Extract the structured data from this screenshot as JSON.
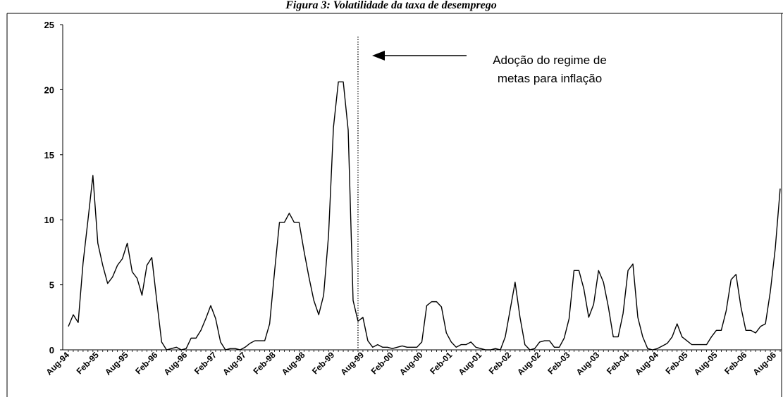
{
  "chart_data": {
    "type": "line",
    "title": "Figura 3: Volatilidade da taxa de desemprego",
    "xlabel": "",
    "ylabel": "",
    "ylim": [
      0,
      25
    ],
    "yticks": [
      0,
      5,
      10,
      15,
      20,
      25
    ],
    "grid": false,
    "legend": "none",
    "line_color": "#000000",
    "x_tick_labels": [
      "Aug-94",
      "Feb-95",
      "Aug-95",
      "Feb-96",
      "Aug-96",
      "Feb-97",
      "Aug-97",
      "Feb-98",
      "Aug-98",
      "Feb-99",
      "Aug-99",
      "Feb-00",
      "Aug-00",
      "Feb-01",
      "Aug-01",
      "Feb-02",
      "Aug-02",
      "Feb-03",
      "Aug-03",
      "Feb-04",
      "Aug-04",
      "Feb-05",
      "Aug-05",
      "Feb-06",
      "Aug-06"
    ],
    "x_start": "Aug-94",
    "series": [
      {
        "values": [
          1.8,
          2.7,
          2.1,
          6.7,
          10.0,
          13.4,
          8.2,
          6.5,
          5.1,
          5.6,
          6.5,
          7.0,
          8.2,
          6.0,
          5.5,
          4.2,
          6.5,
          7.1,
          3.8,
          0.6,
          0.0,
          0.1,
          0.2,
          0.0,
          0.1,
          0.9,
          0.9,
          1.5,
          2.4,
          3.4,
          2.4,
          0.6,
          0.0,
          0.1,
          0.1,
          0.0,
          0.2,
          0.5,
          0.7,
          0.7,
          0.7,
          2.0,
          6.0,
          9.8,
          9.8,
          10.5,
          9.8,
          9.8,
          7.6,
          5.6,
          3.8,
          2.7,
          4.2,
          8.8,
          17.1,
          20.6,
          20.6,
          16.9,
          3.8,
          2.2,
          2.5,
          0.7,
          0.2,
          0.4,
          0.2,
          0.2,
          0.1,
          0.2,
          0.3,
          0.2,
          0.2,
          0.2,
          0.6,
          3.4,
          3.7,
          3.7,
          3.3,
          1.3,
          0.6,
          0.2,
          0.4,
          0.4,
          0.6,
          0.2,
          0.1,
          0.0,
          0.0,
          0.1,
          0.0,
          1.0,
          3.1,
          5.2,
          2.5,
          0.4,
          0.0,
          0.1,
          0.6,
          0.7,
          0.7,
          0.2,
          0.2,
          0.9,
          2.4,
          6.1,
          6.1,
          4.7,
          2.5,
          3.5,
          6.1,
          5.2,
          3.3,
          1.0,
          1.0,
          2.8,
          6.1,
          6.6,
          2.5,
          1.0,
          0.1,
          0.0,
          0.1,
          0.3,
          0.5,
          1.0,
          2.0,
          1.0,
          0.7,
          0.4,
          0.4,
          0.4,
          0.4,
          1.0,
          1.5,
          1.5,
          3.0,
          5.4,
          5.8,
          3.3,
          1.5,
          1.5,
          1.3,
          1.8,
          2.0,
          4.5,
          7.8,
          12.4
        ]
      }
    ],
    "vertical_marker": {
      "month_index": 59,
      "label_ref": "Aug-99",
      "style": "dotted"
    },
    "annotation": {
      "lines": [
        "Adoção do regime de",
        "metas para inflação"
      ],
      "arrow": "left"
    }
  }
}
